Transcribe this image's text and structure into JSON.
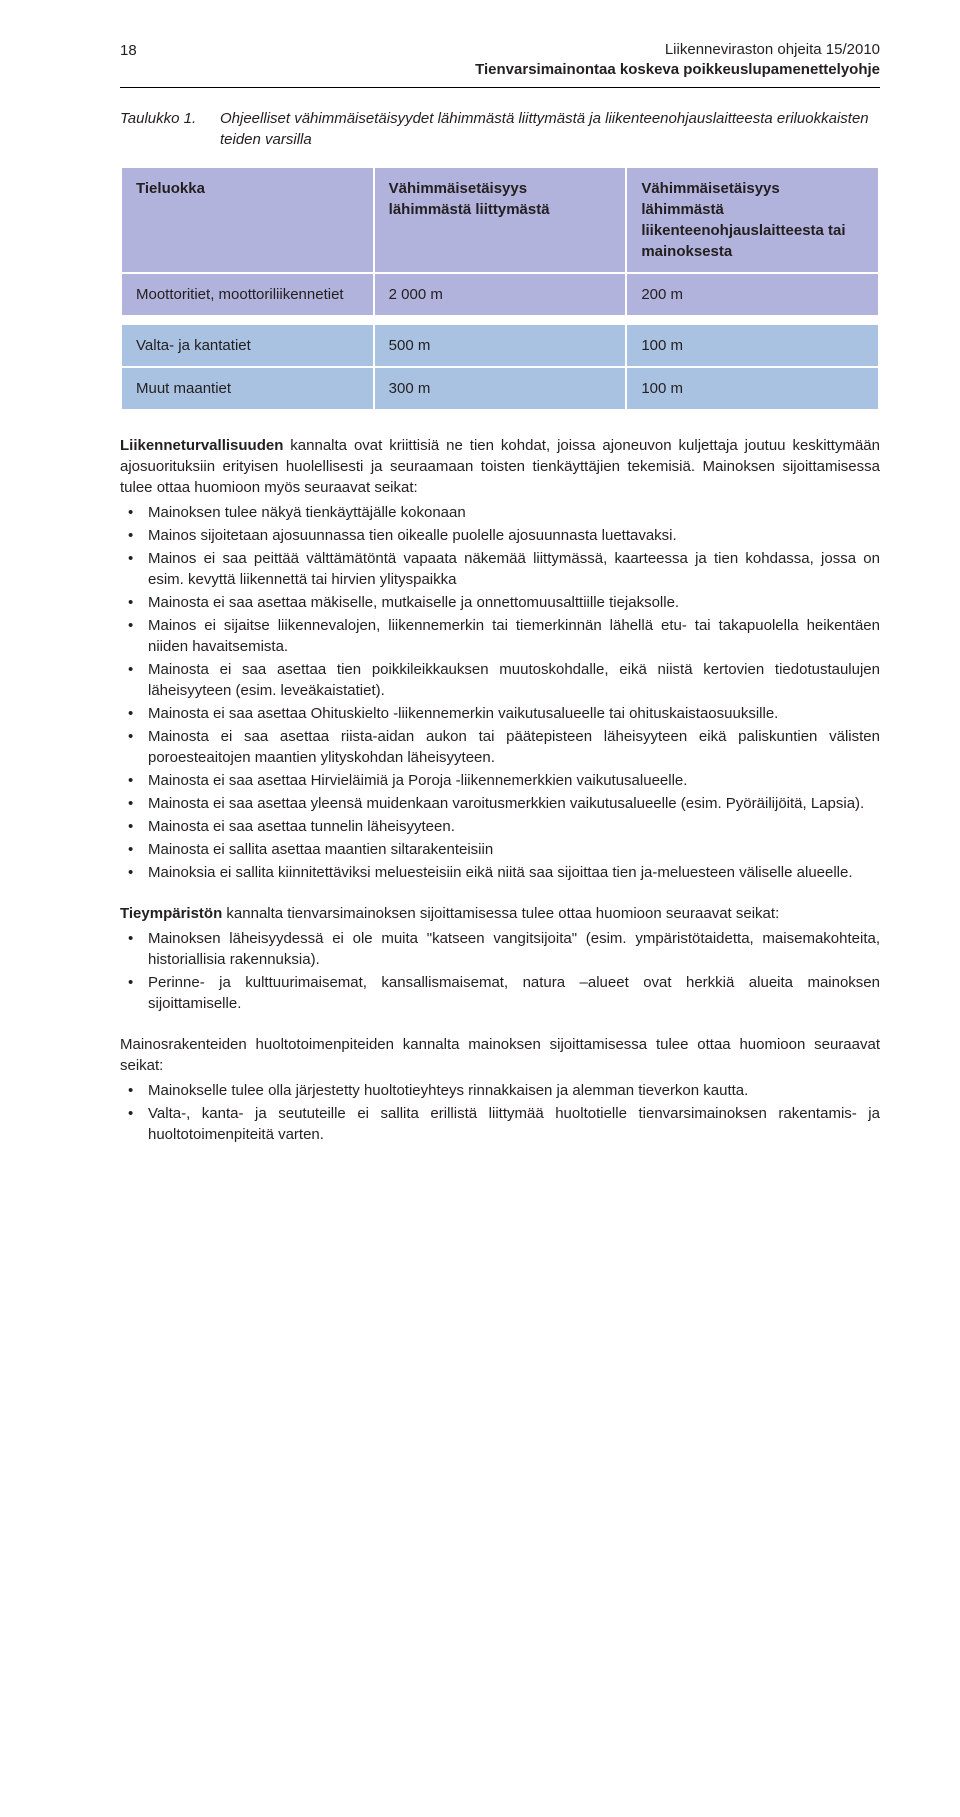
{
  "header": {
    "page_number": "18",
    "title": "Liikenneviraston ohjeita 15/2010",
    "subtitle": "Tienvarsimainontaa koskeva poikkeuslupamenettelyohje"
  },
  "taulukko": {
    "label": "Taulukko 1.",
    "description": "Ohjeelliset vähimmäisetäisyydet lähimmästä liittymästä ja liikenteenohjauslaitteesta eriluokkaisten teiden varsilla"
  },
  "table": {
    "header_bg": "#b2b3dc",
    "row_alt_bg": "#aac2e1",
    "row_bg": "#b2b3dc",
    "columns": [
      "Tieluokka",
      "Vähimmäisetäisyys lähimmästä liittymästä",
      "Vähimmäisetäisyys lähimmästä liikenteenohjauslaitteesta tai mainoksesta"
    ],
    "rows_top": [
      [
        "Moottoritiet, moottoriliikennetiet",
        "2 000 m",
        "200 m"
      ]
    ],
    "rows_bottom": [
      [
        "Valta- ja kantatiet",
        "500 m",
        "100 m"
      ],
      [
        "Muut maantiet",
        "300 m",
        "100 m"
      ]
    ]
  },
  "para1": {
    "lead": "Liikenneturvallisuuden",
    "rest": " kannalta ovat kriittisiä ne tien kohdat, joissa ajoneuvon kuljettaja joutuu keskittymään ajosuorituksiin erityisen huolellisesti ja seuraamaan toisten tienkäyttäjien tekemisiä. Mainoksen sijoittamisessa tulee ottaa huomioon myös seuraavat seikat:"
  },
  "bullets1": [
    "Mainoksen tulee näkyä tienkäyttäjälle kokonaan",
    "Mainos sijoitetaan ajosuunnassa tien oikealle puolelle ajosuunnasta luettavaksi.",
    "Mainos ei saa peittää välttämätöntä vapaata näkemää liittymässä, kaarteessa ja tien kohdassa, jossa on esim. kevyttä liikennettä tai hirvien ylityspaikka",
    "Mainosta ei saa asettaa mäkiselle, mutkaiselle ja onnettomuusalttiille tiejaksolle.",
    "Mainos ei sijaitse liikennevalojen, liikennemerkin tai tiemerkinnän lähellä etu- tai takapuolella heikentäen niiden havaitsemista.",
    "Mainosta ei saa asettaa tien poikkileikkauksen muutoskohdalle, eikä niistä kertovien tiedotustaulujen läheisyyteen (esim. leveäkaistatiet).",
    "Mainosta ei saa asettaa Ohituskielto -liikennemerkin vaikutusalueelle tai ohituskaistaosuuksille.",
    "Mainosta ei saa asettaa riista-aidan aukon tai päätepisteen läheisyyteen eikä paliskuntien välisten poroesteaitojen maantien ylityskohdan läheisyyteen.",
    "Mainosta ei saa asettaa Hirvieläimiä ja Poroja -liikennemerkkien vaikutusalueelle.",
    "Mainosta ei saa asettaa yleensä muidenkaan varoitusmerkkien vaikutusalueelle (esim. Pyöräilijöitä, Lapsia).",
    "Mainosta ei saa asettaa tunnelin läheisyyteen.",
    "Mainosta ei sallita asettaa maantien siltarakenteisiin",
    "Mainoksia ei sallita kiinnitettäviksi meluesteisiin eikä niitä saa sijoittaa tien ja-meluesteen väliselle alueelle."
  ],
  "para2": {
    "lead": "Tieympäristön",
    "rest": " kannalta tienvarsimainoksen sijoittamisessa tulee ottaa huomioon seuraavat seikat:"
  },
  "bullets2": [
    "Mainoksen läheisyydessä ei ole muita \"katseen vangitsijoita\" (esim. ympäristötaidetta, maisemakohteita, historiallisia rakennuksia).",
    "Perinne- ja kulttuurimaisemat, kansallismaisemat, natura –alueet ovat herkkiä alueita mainoksen sijoittamiselle."
  ],
  "para3": {
    "text": "Mainosrakenteiden huoltotoimenpiteiden kannalta mainoksen sijoittamisessa tulee ottaa huomioon seuraavat seikat:"
  },
  "bullets3": [
    "Mainokselle tulee olla järjestetty huoltotieyhteys rinnakkaisen ja alemman tieverkon kautta.",
    "Valta-, kanta- ja seututeille ei sallita erillistä liittymää huoltotielle tienvarsimainoksen rakentamis- ja huoltotoimenpiteitä varten."
  ]
}
